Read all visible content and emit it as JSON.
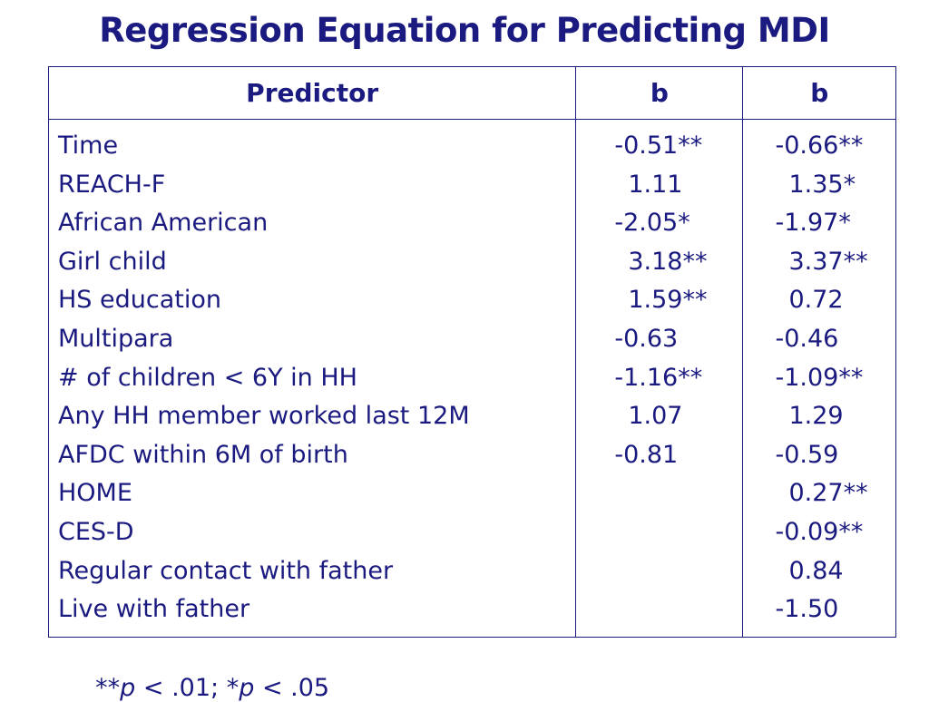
{
  "title": "Regression Equation for Predicting MDI",
  "table": {
    "header": [
      "Predictor",
      "b",
      "b"
    ],
    "rows": [
      [
        "Time",
        "-0.51**",
        "-0.66**"
      ],
      [
        "REACH-F",
        "1.11",
        "1.35*"
      ],
      [
        "African American",
        "-2.05*",
        "-1.97*"
      ],
      [
        "Girl child",
        "3.18**",
        "3.37**"
      ],
      [
        "HS education",
        "1.59**",
        "0.72"
      ],
      [
        "Multipara",
        "-0.63",
        "-0.46"
      ],
      [
        "# of children < 6Y in HH",
        "-1.16**",
        "-1.09**"
      ],
      [
        "Any HH member worked last 12M",
        "1.07",
        "1.29"
      ],
      [
        "AFDC within 6M of birth",
        "-0.81",
        "-0.59"
      ],
      [
        "HOME",
        null,
        "0.27**"
      ],
      [
        "CES-D",
        null,
        "-0.09**"
      ],
      [
        "Regular contact with father",
        null,
        "0.84"
      ],
      [
        "Live with father",
        null,
        "-1.50"
      ]
    ]
  },
  "footnote": [
    "**",
    "p",
    " < .01; ",
    "*",
    "p",
    " < .05"
  ]
}
